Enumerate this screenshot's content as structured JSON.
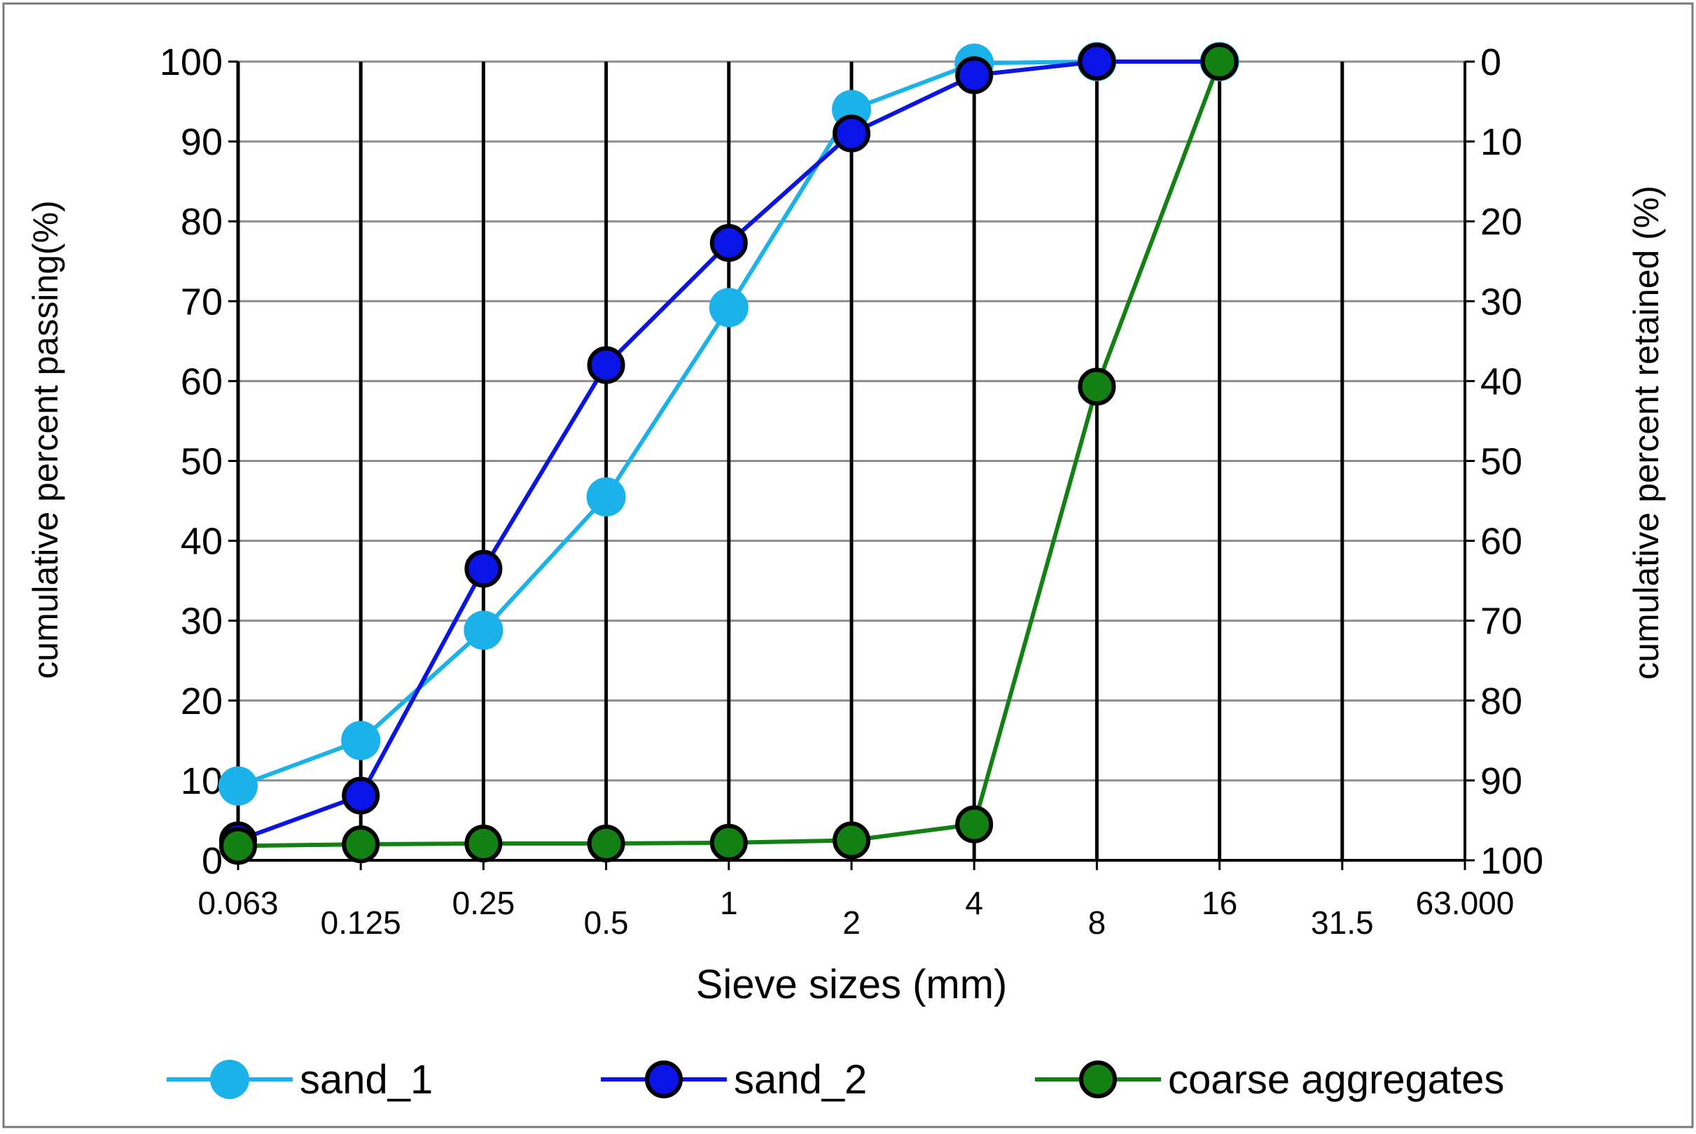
{
  "chart_data": {
    "type": "line",
    "title": "",
    "xlabel": "Sieve sizes (mm)",
    "ylabel": "cumulative percent  passing(%)",
    "ylabel_right": "cumulative percent retained (%)",
    "categories": [
      "0.063",
      "0.125",
      "0.25",
      "0.5",
      "1",
      "2",
      "4",
      "8",
      "16",
      "31.5",
      "63.000"
    ],
    "x_scale": "log (sieve series)",
    "ylim": [
      0,
      100
    ],
    "y_ticks": [
      0,
      10,
      20,
      30,
      40,
      50,
      60,
      70,
      80,
      90,
      100
    ],
    "y_right_ticks": [
      100,
      90,
      80,
      70,
      60,
      50,
      40,
      30,
      20,
      10,
      0
    ],
    "grid": "major x and y",
    "legend_position": "bottom",
    "series": [
      {
        "name": "sand_1",
        "color": "#1ab2e8",
        "marker": "filled circle",
        "values": [
          9.3,
          15.0,
          28.8,
          45.5,
          69.2,
          94.0,
          99.8,
          100,
          100,
          null,
          null
        ]
      },
      {
        "name": "sand_2",
        "color": "#0b14e6",
        "marker": "circle with black outline",
        "values": [
          2.5,
          8.1,
          36.5,
          62.0,
          77.3,
          91.0,
          98.3,
          100,
          100,
          null,
          null
        ]
      },
      {
        "name": "coarse aggregates",
        "color": "#138013",
        "marker": "circle with black outline",
        "values": [
          1.8,
          2.0,
          2.1,
          2.1,
          2.2,
          2.5,
          4.5,
          59.3,
          100,
          null,
          null
        ]
      }
    ]
  }
}
